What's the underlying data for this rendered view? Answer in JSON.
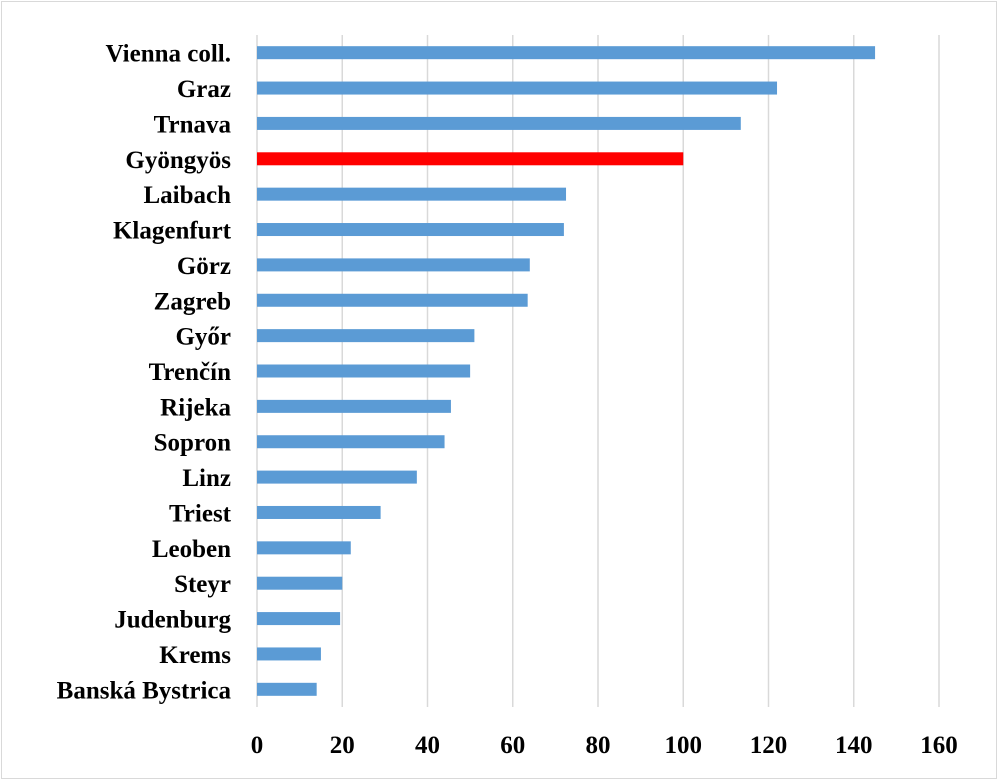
{
  "chart_data": {
    "type": "bar",
    "orientation": "horizontal",
    "title": "",
    "xlabel": "",
    "ylabel": "",
    "xlim": [
      0,
      160
    ],
    "x_ticks": [
      0,
      20,
      40,
      60,
      80,
      100,
      120,
      140,
      160
    ],
    "grid": "vertical",
    "legend": "none",
    "categories": [
      "Vienna coll.",
      "Graz",
      "Trnava",
      "Gyöngyös",
      "Laibach",
      "Klagenfurt",
      "Görz",
      "Zagreb",
      "Győr",
      "Trenčín",
      "Rijeka",
      "Sopron",
      "Linz",
      "Triest",
      "Leoben",
      "Steyr",
      "Judenburg",
      "Krems",
      "Banská Bystrica"
    ],
    "values": [
      145,
      122,
      113.5,
      100,
      72.5,
      72,
      64,
      63.5,
      51,
      50,
      45.5,
      44,
      37.5,
      29,
      22,
      20,
      19.5,
      15,
      14
    ],
    "bar_color": "#5b9bd5",
    "highlight_category": "Gyöngyös",
    "highlight_color": "#ff0000",
    "grid_color": "#d9d9d9"
  }
}
